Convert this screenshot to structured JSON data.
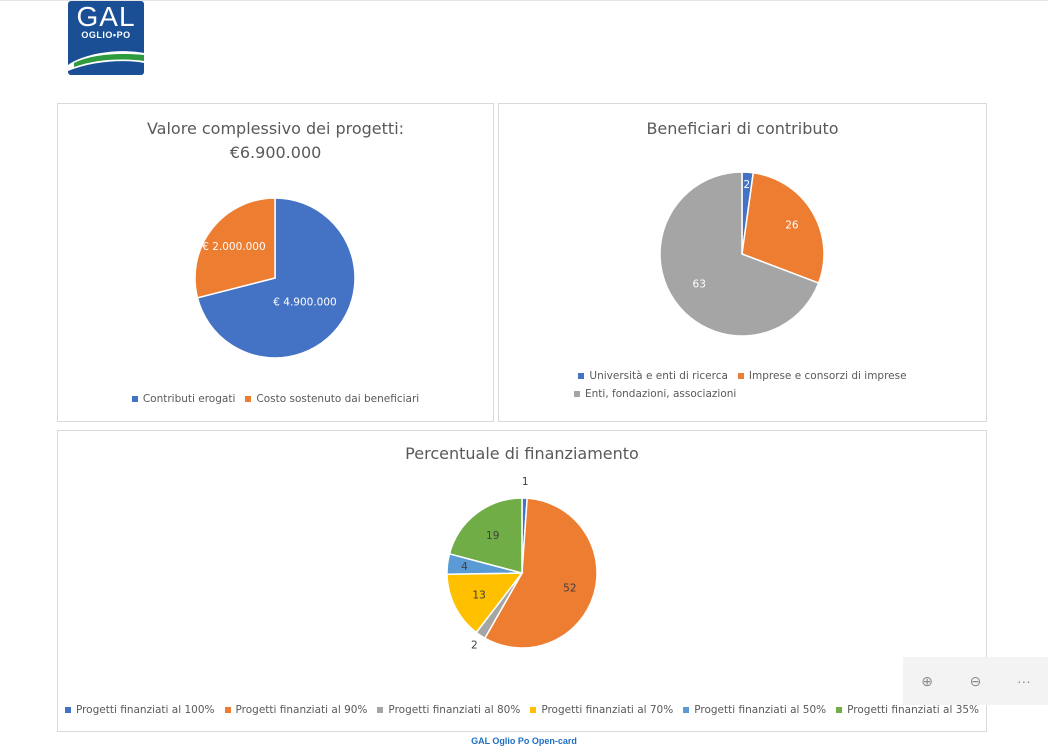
{
  "logo": {
    "main": "GAL",
    "sub": "OGLIO•PO"
  },
  "zoom": {
    "in_icon": "zoom-in-icon",
    "out_icon": "zoom-out-icon",
    "more_icon": "more-icon",
    "in_glyph": "⊕",
    "out_glyph": "⊖",
    "more_glyph": "···"
  },
  "footer": {
    "link": "GAL Oglio Po Open-card"
  },
  "chart_data": [
    {
      "type": "pie",
      "title": "Valore complessivo dei progetti:",
      "subtitle": "€6.900.000",
      "labels": [
        "Contributi erogati",
        "Costo sostenuto dai beneficiari"
      ],
      "values": [
        4900000,
        2000000
      ],
      "data_labels": [
        "€ 4.900.000",
        "€ 2.000.000"
      ],
      "colors": [
        "#4472c4",
        "#ed7d31"
      ],
      "label_color": "#ffffff",
      "legend": "bottom"
    },
    {
      "type": "pie",
      "title": "Beneficiari di contributo",
      "labels": [
        "Università e enti di ricerca",
        "Imprese e consorzi di imprese",
        "Enti, fondazioni, associazioni"
      ],
      "values": [
        2,
        26,
        63
      ],
      "data_labels": [
        "2",
        "26",
        "63"
      ],
      "colors": [
        "#4472c4",
        "#ed7d31",
        "#a5a5a5"
      ],
      "label_color": "#ffffff",
      "legend": "bottom"
    },
    {
      "type": "pie",
      "title": "Percentuale di finanziamento",
      "labels": [
        "Progetti finanziati al 100%",
        "Progetti finanziati al 90%",
        "Progetti finanziati al 80%",
        "Progetti finanziati al 70%",
        "Progetti finanziati al 50%",
        "Progetti finanziati al 35%"
      ],
      "values": [
        1,
        52,
        2,
        13,
        4,
        19
      ],
      "data_labels": [
        "1",
        "52",
        "2",
        "13",
        "4",
        "19"
      ],
      "colors": [
        "#4472c4",
        "#ed7d31",
        "#a5a5a5",
        "#ffc000",
        "#5b9bd5",
        "#70ad47"
      ],
      "label_color": "#404040",
      "legend": "bottom"
    }
  ]
}
